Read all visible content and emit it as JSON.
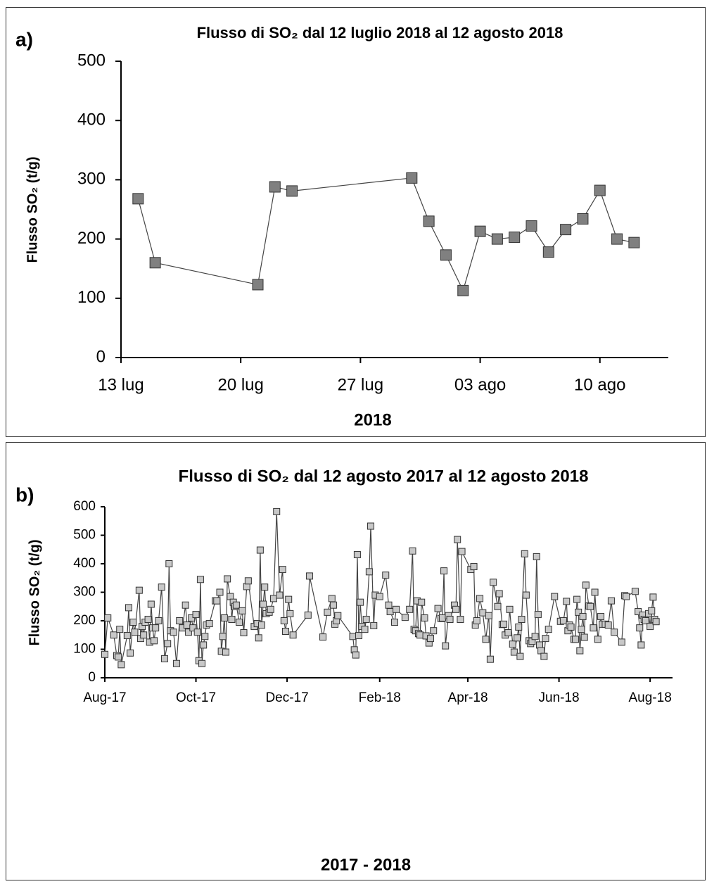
{
  "chart_data": [
    {
      "type": "line",
      "panel": "a)",
      "title": "Flusso di SO₂ dal 12 luglio 2018 al 12 agosto 2018",
      "xlabel": "2018",
      "ylabel": "Flusso SO₂ (t/g)",
      "x": [
        "2018-07-14",
        "2018-07-15",
        "2018-07-21",
        "2018-07-22",
        "2018-07-23",
        "2018-07-30",
        "2018-07-31",
        "2018-08-01",
        "2018-08-02",
        "2018-08-03",
        "2018-08-04",
        "2018-08-05",
        "2018-08-06",
        "2018-08-07",
        "2018-08-08",
        "2018-08-09",
        "2018-08-10",
        "2018-08-11",
        "2018-08-12"
      ],
      "values": [
        268,
        160,
        123,
        288,
        281,
        303,
        230,
        173,
        113,
        213,
        200,
        203,
        222,
        178,
        216,
        234,
        282,
        200,
        194
      ],
      "color": "#808080",
      "xlim": [
        "2018-07-13",
        "2018-08-14"
      ],
      "xticks": [
        {
          "value": "2018-07-13",
          "label": "13 lug"
        },
        {
          "value": "2018-07-20",
          "label": "20 lug"
        },
        {
          "value": "2018-07-27",
          "label": "27 lug"
        },
        {
          "value": "2018-08-03",
          "label": "03 ago"
        },
        {
          "value": "2018-08-10",
          "label": "10 ago"
        }
      ],
      "ylim": [
        0,
        500
      ],
      "yticks": [
        0,
        100,
        200,
        300,
        400,
        500
      ]
    },
    {
      "type": "line",
      "panel": "b)",
      "title": "Flusso di SO₂ dal 12 agosto 2017 al 12 agosto 2018",
      "xlabel": "2017 - 2018",
      "ylabel": "Flusso SO₂ (t/g)",
      "x": [
        0,
        2,
        6,
        8,
        9,
        10,
        11,
        15,
        16,
        17,
        19,
        20,
        23,
        24,
        25,
        26,
        27,
        29,
        30,
        31,
        32,
        33,
        34,
        36,
        38,
        40,
        42,
        43,
        44,
        46,
        48,
        50,
        52,
        54,
        55,
        56,
        58,
        59,
        61,
        62,
        63,
        64,
        65,
        66,
        67,
        68,
        70,
        74,
        75,
        77,
        78,
        79,
        80,
        81,
        82,
        84,
        85,
        86,
        87,
        88,
        90,
        92,
        93,
        95,
        96,
        100,
        102,
        103,
        104,
        105,
        106,
        107,
        108,
        110,
        111,
        113,
        115,
        117,
        119,
        120,
        121,
        123,
        124,
        126,
        136,
        137,
        146,
        149,
        152,
        153,
        154,
        155,
        156,
        166,
        167,
        168,
        169,
        170,
        171,
        172,
        174,
        175,
        177,
        178,
        180,
        181,
        184,
        188,
        190,
        191,
        194,
        195,
        201,
        204,
        206,
        207,
        208,
        209,
        210,
        211,
        212,
        214,
        215,
        217,
        218,
        220,
        223,
        225,
        226,
        227,
        228,
        230,
        231,
        234,
        235,
        236,
        238,
        239,
        245,
        247,
        248,
        249,
        251,
        253,
        255,
        257,
        258,
        260,
        263,
        264,
        266,
        267,
        268,
        270,
        271,
        273,
        274,
        276,
        277,
        278,
        279,
        281,
        282,
        284,
        285,
        286,
        288,
        289,
        290,
        291,
        292,
        294,
        295,
        297,
        301,
        305,
        307,
        309,
        310,
        311,
        312,
        314,
        315,
        316,
        317,
        318,
        319,
        320,
        321,
        322,
        324,
        325,
        327,
        328,
        330,
        332,
        333,
        335,
        337,
        339,
        341,
        346,
        348,
        349,
        355,
        357,
        358,
        359,
        360,
        361,
        362,
        364,
        365,
        366,
        367,
        368,
        369
      ],
      "values": [
        82,
        210,
        150,
        78,
        73,
        170,
        46,
        148,
        246,
        87,
        195,
        160,
        307,
        138,
        180,
        150,
        195,
        205,
        125,
        258,
        175,
        130,
        175,
        200,
        318,
        67,
        120,
        400,
        165,
        160,
        50,
        200,
        175,
        255,
        185,
        160,
        210,
        175,
        222,
        160,
        60,
        345,
        50,
        115,
        145,
        185,
        190,
        270,
        270,
        300,
        93,
        145,
        210,
        90,
        347,
        285,
        205,
        265,
        250,
        255,
        195,
        235,
        158,
        320,
        340,
        180,
        190,
        140,
        448,
        185,
        258,
        318,
        225,
        230,
        240,
        278,
        583,
        290,
        380,
        200,
        163,
        275,
        225,
        150,
        220,
        357,
        143,
        230,
        278,
        255,
        188,
        200,
        218,
        145,
        98,
        80,
        432,
        148,
        265,
        180,
        170,
        205,
        372,
        532,
        183,
        290,
        285,
        360,
        255,
        232,
        195,
        240,
        212,
        240,
        445,
        170,
        165,
        270,
        155,
        150,
        265,
        210,
        147,
        122,
        138,
        165,
        243,
        208,
        210,
        375,
        112,
        218,
        205,
        255,
        240,
        485,
        205,
        443,
        380,
        390,
        185,
        200,
        278,
        228,
        135,
        218,
        65,
        335,
        250,
        295,
        187,
        188,
        150,
        158,
        240,
        118,
        90,
        140,
        178,
        75,
        205,
        435,
        290,
        130,
        120,
        128,
        145,
        425,
        222,
        115,
        95,
        75,
        138,
        170,
        285,
        198,
        200,
        268,
        165,
        185,
        178,
        135,
        135,
        275,
        230,
        95,
        170,
        215,
        142,
        325,
        252,
        250,
        175,
        300,
        135,
        215,
        188,
        188,
        185,
        270,
        160,
        125,
        288,
        285,
        303,
        232,
        175,
        115,
        220,
        205,
        200,
        225,
        180,
        235,
        283,
        205,
        197
      ],
      "color": "#c8c8c8",
      "xlim": [
        0,
        380
      ],
      "xticks": [
        {
          "value": 0,
          "label": "Aug-17"
        },
        {
          "value": 61,
          "label": "Oct-17"
        },
        {
          "value": 122,
          "label": "Dec-17"
        },
        {
          "value": 184,
          "label": "Feb-18"
        },
        {
          "value": 243,
          "label": "Apr-18"
        },
        {
          "value": 304,
          "label": "Jun-18"
        },
        {
          "value": 365,
          "label": "Aug-18"
        }
      ],
      "ylim": [
        0,
        600
      ],
      "yticks": [
        0,
        100,
        200,
        300,
        400,
        500,
        600
      ]
    }
  ]
}
